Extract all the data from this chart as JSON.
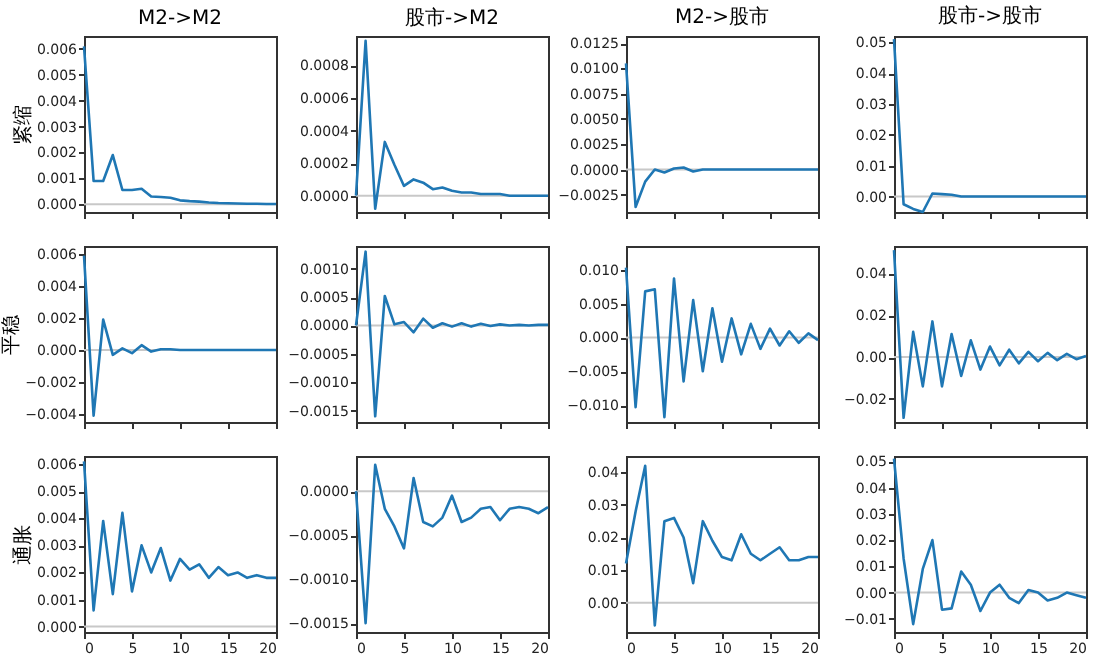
{
  "chart_data": [
    {
      "type": "line",
      "title": "M2->M2",
      "ylabel": "紧缩",
      "x": [
        0,
        1,
        2,
        3,
        4,
        5,
        6,
        7,
        8,
        9,
        10,
        11,
        12,
        13,
        14,
        15,
        16,
        17,
        18,
        19,
        20
      ],
      "xlim": [
        0,
        20
      ],
      "xticks": [
        0,
        5,
        10,
        15,
        20
      ],
      "ylim": [
        -0.0003,
        0.0065
      ],
      "yticks": [
        {
          "value": 0,
          "label": "0.000"
        },
        {
          "value": 0.001,
          "label": "0.001"
        },
        {
          "value": 0.002,
          "label": "0.002"
        },
        {
          "value": 0.003,
          "label": "0.003"
        },
        {
          "value": 0.004,
          "label": "0.004"
        },
        {
          "value": 0.005,
          "label": "0.005"
        },
        {
          "value": 0.006,
          "label": "0.006"
        }
      ],
      "tick_labels": "y",
      "ref_lines": [
        {
          "axis": "y",
          "value": 0,
          "color": "#c8c8c8"
        }
      ],
      "series": [
        {
          "color": "#1f77b4",
          "values": [
            0.0061,
            0.0009,
            0.0009,
            0.0019,
            0.00055,
            0.00055,
            0.0006,
            0.0003,
            0.00028,
            0.00025,
            0.00015,
            0.00012,
            0.0001,
            7e-05,
            5e-05,
            4e-05,
            3e-05,
            2e-05,
            2e-05,
            1e-05,
            1e-05
          ]
        }
      ]
    },
    {
      "type": "line",
      "title": "股市->M2",
      "x": [
        0,
        1,
        2,
        3,
        4,
        5,
        6,
        7,
        8,
        9,
        10,
        11,
        12,
        13,
        14,
        15,
        16,
        17,
        18,
        19,
        20
      ],
      "xlim": [
        0,
        20
      ],
      "xticks": [
        0,
        5,
        10,
        15,
        20
      ],
      "ylim": [
        -0.0001,
        0.00098
      ],
      "yticks": [
        {
          "value": 0,
          "label": "0.0000"
        },
        {
          "value": 0.0002,
          "label": "0.0002"
        },
        {
          "value": 0.0004,
          "label": "0.0004"
        },
        {
          "value": 0.0006,
          "label": "0.0006"
        },
        {
          "value": 0.0008,
          "label": "0.0008"
        }
      ],
      "tick_labels": "y",
      "ref_lines": [
        {
          "axis": "y",
          "value": 0,
          "color": "#c8c8c8"
        }
      ],
      "series": [
        {
          "color": "#1f77b4",
          "values": [
            0,
            0.00095,
            -8e-05,
            0.00033,
            0.00019,
            6e-05,
            0.0001,
            8e-05,
            4e-05,
            5e-05,
            3e-05,
            2e-05,
            2e-05,
            1e-05,
            1e-05,
            1e-05,
            0,
            0,
            0,
            0,
            0
          ]
        }
      ]
    },
    {
      "type": "line",
      "title": "M2->股市",
      "x": [
        0,
        1,
        2,
        3,
        4,
        5,
        6,
        7,
        8,
        9,
        10,
        11,
        12,
        13,
        14,
        15,
        16,
        17,
        18,
        19,
        20
      ],
      "xlim": [
        0,
        20
      ],
      "xticks": [
        0,
        5,
        10,
        15,
        20
      ],
      "ylim": [
        -0.0042,
        0.0132
      ],
      "yticks": [
        {
          "value": -0.0025,
          "label": "−0.0025"
        },
        {
          "value": 0,
          "label": "0.0000"
        },
        {
          "value": 0.0025,
          "label": "0.0025"
        },
        {
          "value": 0.005,
          "label": "0.0050"
        },
        {
          "value": 0.0075,
          "label": "0.0075"
        },
        {
          "value": 0.01,
          "label": "0.0100"
        },
        {
          "value": 0.0125,
          "label": "0.0125"
        }
      ],
      "tick_labels": "y",
      "ref_lines": [
        {
          "axis": "y",
          "value": 0,
          "color": "#c8c8c8"
        }
      ],
      "series": [
        {
          "color": "#1f77b4",
          "values": [
            0.0105,
            -0.0037,
            -0.0012,
            0,
            -0.0003,
            0.0001,
            0.0002,
            -0.0002,
            0,
            0,
            0,
            0,
            0,
            0,
            0,
            0,
            0,
            0,
            0,
            0,
            0
          ]
        }
      ]
    },
    {
      "type": "line",
      "title": "股市->股市",
      "x": [
        0,
        1,
        2,
        3,
        4,
        5,
        6,
        7,
        8,
        9,
        10,
        11,
        12,
        13,
        14,
        15,
        16,
        17,
        18,
        19,
        20
      ],
      "xlim": [
        0,
        20
      ],
      "xticks": [
        0,
        5,
        10,
        15,
        20
      ],
      "ylim": [
        -0.005,
        0.052
      ],
      "yticks": [
        {
          "value": 0,
          "label": "0.00"
        },
        {
          "value": 0.01,
          "label": "0.01"
        },
        {
          "value": 0.02,
          "label": "0.02"
        },
        {
          "value": 0.03,
          "label": "0.03"
        },
        {
          "value": 0.04,
          "label": "0.04"
        },
        {
          "value": 0.05,
          "label": "0.05"
        }
      ],
      "tick_labels": "y",
      "ref_lines": [
        {
          "axis": "y",
          "value": 0,
          "color": "#c8c8c8"
        }
      ],
      "series": [
        {
          "color": "#1f77b4",
          "values": [
            0.051,
            -0.0025,
            -0.004,
            -0.005,
            0.001,
            0.0008,
            0.0006,
            0,
            0,
            0,
            0,
            0,
            0,
            0,
            0,
            0,
            0,
            0,
            0,
            0,
            0
          ]
        }
      ]
    },
    {
      "type": "line",
      "ylabel": "平稳",
      "x": [
        0,
        1,
        2,
        3,
        4,
        5,
        6,
        7,
        8,
        9,
        10,
        11,
        12,
        13,
        14,
        15,
        16,
        17,
        18,
        19,
        20
      ],
      "xlim": [
        0,
        20
      ],
      "xticks": [
        0,
        5,
        10,
        15,
        20
      ],
      "ylim": [
        -0.0045,
        0.0065
      ],
      "yticks": [
        {
          "value": -0.004,
          "label": "−0.004"
        },
        {
          "value": -0.002,
          "label": "−0.002"
        },
        {
          "value": 0,
          "label": "0.000"
        },
        {
          "value": 0.002,
          "label": "0.002"
        },
        {
          "value": 0.004,
          "label": "0.004"
        },
        {
          "value": 0.006,
          "label": "0.006"
        }
      ],
      "tick_labels": "y",
      "ref_lines": [
        {
          "axis": "y",
          "value": 0,
          "color": "#c8c8c8"
        }
      ],
      "series": [
        {
          "color": "#1f77b4",
          "values": [
            0.0059,
            -0.0041,
            0.0019,
            -0.0003,
            0.0001,
            -0.0002,
            0.0003,
            -0.0001,
            5e-05,
            5e-05,
            0,
            0,
            0,
            0,
            0,
            0,
            0,
            0,
            0,
            0,
            0
          ]
        }
      ]
    },
    {
      "type": "line",
      "x": [
        0,
        1,
        2,
        3,
        4,
        5,
        6,
        7,
        8,
        9,
        10,
        11,
        12,
        13,
        14,
        15,
        16,
        17,
        18,
        19,
        20
      ],
      "xlim": [
        0,
        20
      ],
      "xticks": [
        0,
        5,
        10,
        15,
        20
      ],
      "ylim": [
        -0.0017,
        0.0014
      ],
      "yticks": [
        {
          "value": -0.0015,
          "label": "−0.0015"
        },
        {
          "value": -0.001,
          "label": "−0.0010"
        },
        {
          "value": -0.0005,
          "label": "−0.0005"
        },
        {
          "value": 0,
          "label": "0.0000"
        },
        {
          "value": 0.0005,
          "label": "0.0005"
        },
        {
          "value": 0.001,
          "label": "0.0010"
        }
      ],
      "tick_labels": "y",
      "ref_lines": [
        {
          "axis": "y",
          "value": 0,
          "color": "#c8c8c8"
        }
      ],
      "series": [
        {
          "color": "#1f77b4",
          "values": [
            0,
            0.0013,
            -0.0016,
            0.00052,
            2e-05,
            6e-05,
            -0.00012,
            0.00012,
            -4e-05,
            4e-05,
            -2e-05,
            4e-05,
            -2e-05,
            3e-05,
            -1e-05,
            2e-05,
            0,
            1e-05,
            0,
            1e-05,
            1e-05
          ]
        }
      ]
    },
    {
      "type": "line",
      "x": [
        0,
        1,
        2,
        3,
        4,
        5,
        6,
        7,
        8,
        9,
        10,
        11,
        12,
        13,
        14,
        15,
        16,
        17,
        18,
        19,
        20
      ],
      "xlim": [
        0,
        20
      ],
      "xticks": [
        0,
        5,
        10,
        15,
        20
      ],
      "ylim": [
        -0.0125,
        0.0135
      ],
      "yticks": [
        {
          "value": -0.01,
          "label": "−0.010"
        },
        {
          "value": -0.005,
          "label": "−0.005"
        },
        {
          "value": 0,
          "label": "0.000"
        },
        {
          "value": 0.005,
          "label": "0.005"
        },
        {
          "value": 0.01,
          "label": "0.010"
        }
      ],
      "tick_labels": "y",
      "ref_lines": [
        {
          "axis": "y",
          "value": 0,
          "color": "#c8c8c8"
        }
      ],
      "series": [
        {
          "color": "#1f77b4",
          "values": [
            0.0103,
            -0.0103,
            0.0068,
            0.0071,
            -0.0118,
            0.0087,
            -0.0065,
            0.0055,
            -0.005,
            0.0043,
            -0.0036,
            0.0028,
            -0.0025,
            0.002,
            -0.0017,
            0.0013,
            -0.0012,
            0.0009,
            -0.0008,
            0.0006,
            -0.0004
          ]
        }
      ]
    },
    {
      "type": "line",
      "x": [
        0,
        1,
        2,
        3,
        4,
        5,
        6,
        7,
        8,
        9,
        10,
        11,
        12,
        13,
        14,
        15,
        16,
        17,
        18,
        19,
        20
      ],
      "xlim": [
        0,
        20
      ],
      "xticks": [
        0,
        5,
        10,
        15,
        20
      ],
      "ylim": [
        -0.031,
        0.053
      ],
      "yticks": [
        {
          "value": -0.02,
          "label": "−0.02"
        },
        {
          "value": 0,
          "label": "0.00"
        },
        {
          "value": 0.02,
          "label": "0.02"
        },
        {
          "value": 0.04,
          "label": "0.04"
        }
      ],
      "tick_labels": "y",
      "ref_lines": [
        {
          "axis": "y",
          "value": 0,
          "color": "#c8c8c8"
        }
      ],
      "series": [
        {
          "color": "#1f77b4",
          "values": [
            0.051,
            -0.029,
            0.012,
            -0.014,
            0.017,
            -0.014,
            0.011,
            -0.009,
            0.008,
            -0.006,
            0.005,
            -0.004,
            0.0035,
            -0.003,
            0.0025,
            -0.002,
            0.002,
            -0.0015,
            0.0015,
            -0.001,
            0.0005
          ]
        }
      ]
    },
    {
      "type": "line",
      "ylabel": "通胀",
      "x": [
        0,
        1,
        2,
        3,
        4,
        5,
        6,
        7,
        8,
        9,
        10,
        11,
        12,
        13,
        14,
        15,
        16,
        17,
        18,
        19,
        20
      ],
      "xlim": [
        0,
        20
      ],
      "xticks": [
        0,
        5,
        10,
        15,
        20
      ],
      "ylim": [
        -0.0002,
        0.0063
      ],
      "yticks": [
        {
          "value": 0,
          "label": "0.000"
        },
        {
          "value": 0.001,
          "label": "0.001"
        },
        {
          "value": 0.002,
          "label": "0.002"
        },
        {
          "value": 0.003,
          "label": "0.003"
        },
        {
          "value": 0.004,
          "label": "0.004"
        },
        {
          "value": 0.005,
          "label": "0.005"
        },
        {
          "value": 0.006,
          "label": "0.006"
        }
      ],
      "ref_lines": [
        {
          "axis": "y",
          "value": 0,
          "color": "#c8c8c8"
        }
      ],
      "series": [
        {
          "color": "#1f77b4",
          "values": [
            0.0061,
            0.0006,
            0.0039,
            0.0012,
            0.0042,
            0.0013,
            0.003,
            0.002,
            0.0029,
            0.0017,
            0.0025,
            0.0021,
            0.0023,
            0.0018,
            0.0022,
            0.0019,
            0.002,
            0.0018,
            0.0019,
            0.0018,
            0.0018
          ]
        }
      ]
    },
    {
      "type": "line",
      "x": [
        0,
        1,
        2,
        3,
        4,
        5,
        6,
        7,
        8,
        9,
        10,
        11,
        12,
        13,
        14,
        15,
        16,
        17,
        18,
        19,
        20
      ],
      "xlim": [
        0,
        20
      ],
      "xticks": [
        0,
        5,
        10,
        15,
        20
      ],
      "ylim": [
        -0.0016,
        0.0004
      ],
      "yticks": [
        {
          "value": -0.0015,
          "label": "−0.0015"
        },
        {
          "value": -0.001,
          "label": "−0.0010"
        },
        {
          "value": -0.0005,
          "label": "−0.0005"
        },
        {
          "value": 0,
          "label": "0.0000"
        }
      ],
      "ref_lines": [
        {
          "axis": "y",
          "value": 0,
          "color": "#c8c8c8"
        }
      ],
      "series": [
        {
          "color": "#1f77b4",
          "values": [
            0,
            -0.0015,
            0.0003,
            -0.0002,
            -0.0004,
            -0.00065,
            0.00015,
            -0.00035,
            -0.0004,
            -0.0003,
            -5e-05,
            -0.00035,
            -0.0003,
            -0.0002,
            -0.00018,
            -0.00033,
            -0.0002,
            -0.00018,
            -0.0002,
            -0.00025,
            -0.00018
          ]
        }
      ]
    },
    {
      "type": "line",
      "x": [
        0,
        1,
        2,
        3,
        4,
        5,
        6,
        7,
        8,
        9,
        10,
        11,
        12,
        13,
        14,
        15,
        16,
        17,
        18,
        19,
        20
      ],
      "xlim": [
        0,
        20
      ],
      "xticks": [
        0,
        5,
        10,
        15,
        20
      ],
      "ylim": [
        -0.009,
        0.045
      ],
      "yticks": [
        {
          "value": 0,
          "label": "0.00"
        },
        {
          "value": 0.01,
          "label": "0.01"
        },
        {
          "value": 0.02,
          "label": "0.02"
        },
        {
          "value": 0.03,
          "label": "0.03"
        },
        {
          "value": 0.04,
          "label": "0.04"
        }
      ],
      "ref_lines": [
        {
          "axis": "y",
          "value": 0,
          "color": "#c8c8c8"
        }
      ],
      "series": [
        {
          "color": "#1f77b4",
          "values": [
            0.012,
            0.028,
            0.042,
            -0.007,
            0.025,
            0.026,
            0.02,
            0.006,
            0.025,
            0.019,
            0.014,
            0.013,
            0.021,
            0.015,
            0.013,
            0.015,
            0.017,
            0.013,
            0.013,
            0.014,
            0.014
          ]
        }
      ]
    },
    {
      "type": "line",
      "x": [
        0,
        1,
        2,
        3,
        4,
        5,
        6,
        7,
        8,
        9,
        10,
        11,
        12,
        13,
        14,
        15,
        16,
        17,
        18,
        19,
        20
      ],
      "xlim": [
        0,
        20
      ],
      "xticks": [
        0,
        5,
        10,
        15,
        20
      ],
      "ylim": [
        -0.015,
        0.052
      ],
      "yticks": [
        {
          "value": -0.01,
          "label": "−0.01"
        },
        {
          "value": 0,
          "label": "0.00"
        },
        {
          "value": 0.01,
          "label": "0.01"
        },
        {
          "value": 0.02,
          "label": "0.02"
        },
        {
          "value": 0.03,
          "label": "0.03"
        },
        {
          "value": 0.04,
          "label": "0.04"
        },
        {
          "value": 0.05,
          "label": "0.05"
        }
      ],
      "ref_lines": [
        {
          "axis": "y",
          "value": 0,
          "color": "#c8c8c8"
        }
      ],
      "series": [
        {
          "color": "#1f77b4",
          "values": [
            0.051,
            0.013,
            -0.012,
            0.009,
            0.02,
            -0.0065,
            -0.006,
            0.008,
            0.003,
            -0.007,
            0,
            0.003,
            -0.002,
            -0.004,
            0.001,
            0,
            -0.003,
            -0.002,
            0,
            -0.001,
            -0.002
          ]
        }
      ]
    }
  ]
}
